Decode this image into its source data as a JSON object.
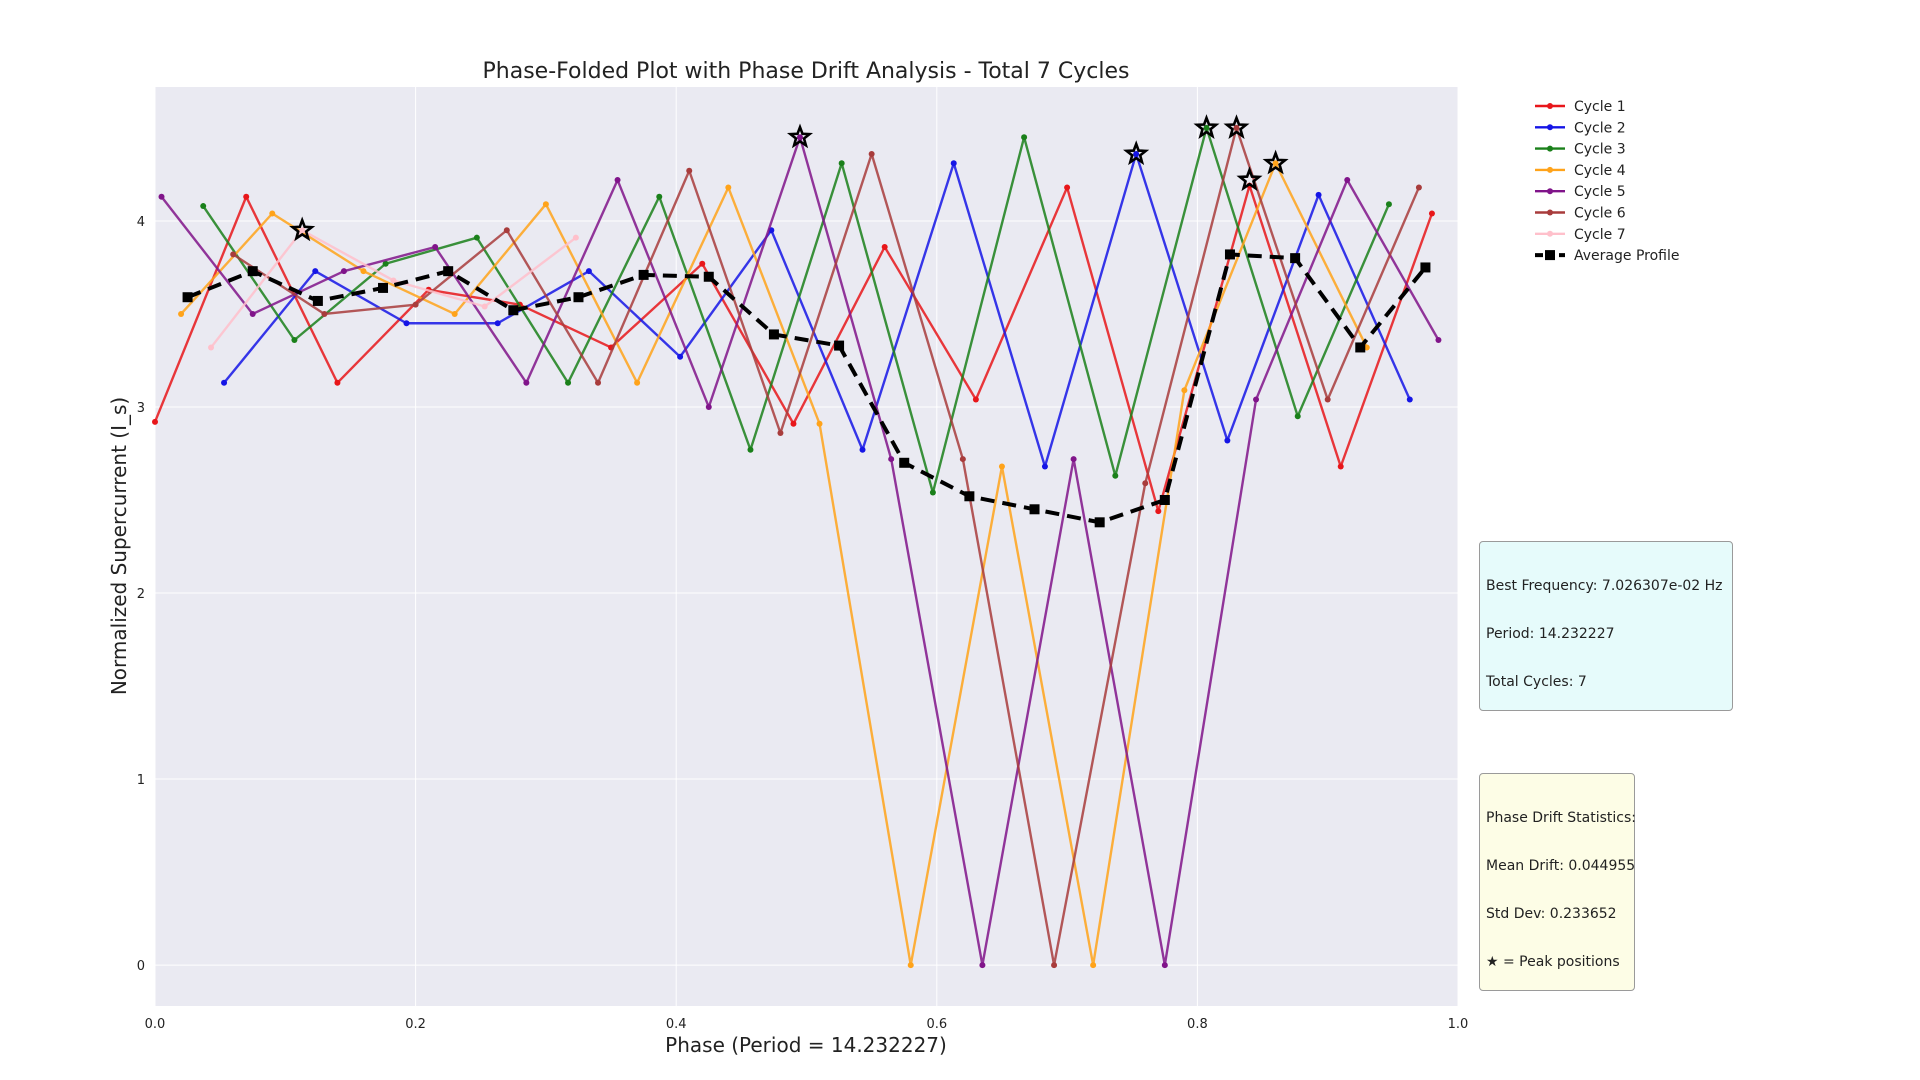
{
  "chart_data": {
    "type": "line",
    "title": "Phase-Folded Plot with Phase Drift Analysis - Total 7 Cycles",
    "xlabel": "Phase (Period = 14.232227)",
    "ylabel": "Normalized Supercurrent (I_s)",
    "xlim": [
      0.0,
      1.0
    ],
    "ylim": [
      -0.22,
      4.72
    ],
    "xticks": [
      "0.0",
      "0.2",
      "0.4",
      "0.6",
      "0.8",
      "1.0"
    ],
    "yticks": [
      "0",
      "1",
      "2",
      "3",
      "4"
    ],
    "grid": true,
    "legend_position": "upper-right-outside",
    "series": [
      {
        "name": "Cycle 1",
        "color": "#e8161a",
        "x": [
          0.0,
          0.07,
          0.14,
          0.21,
          0.28,
          0.35,
          0.42,
          0.49,
          0.56,
          0.63,
          0.7,
          0.77,
          0.84,
          0.91,
          0.98
        ],
        "y": [
          2.92,
          4.13,
          3.13,
          3.63,
          3.55,
          3.32,
          3.77,
          2.91,
          3.86,
          3.04,
          4.18,
          2.44,
          4.19,
          2.68,
          4.04
        ]
      },
      {
        "name": "Cycle 2",
        "color": "#1515e6",
        "x": [
          0.053,
          0.123,
          0.193,
          0.263,
          0.333,
          0.403,
          0.473,
          0.543,
          0.613,
          0.683,
          0.753,
          0.823,
          0.893,
          0.963
        ],
        "y": [
          3.13,
          3.73,
          3.45,
          3.45,
          3.73,
          3.27,
          3.95,
          2.77,
          4.31,
          2.68,
          4.36,
          2.82,
          4.14,
          3.04
        ]
      },
      {
        "name": "Cycle 3",
        "color": "#1a801a",
        "x": [
          0.037,
          0.107,
          0.177,
          0.247,
          0.317,
          0.387,
          0.457,
          0.527,
          0.597,
          0.667,
          0.737,
          0.807,
          0.877,
          0.947
        ],
        "y": [
          4.08,
          3.36,
          3.77,
          3.91,
          3.13,
          4.13,
          2.77,
          4.31,
          2.54,
          4.45,
          2.63,
          4.5,
          2.95,
          4.09
        ]
      },
      {
        "name": "Cycle 4",
        "color": "#ffa31a",
        "x": [
          0.02,
          0.09,
          0.16,
          0.23,
          0.3,
          0.37,
          0.44,
          0.51,
          0.58,
          0.65,
          0.72,
          0.79,
          0.86,
          0.93
        ],
        "y": [
          3.5,
          4.04,
          3.73,
          3.5,
          4.09,
          3.13,
          4.18,
          2.91,
          0.0,
          2.68,
          0.0,
          3.09,
          4.31,
          3.32
        ]
      },
      {
        "name": "Cycle 5",
        "color": "#80148a",
        "x": [
          0.005,
          0.075,
          0.145,
          0.215,
          0.285,
          0.355,
          0.425,
          0.495,
          0.565,
          0.635,
          0.705,
          0.775,
          0.845,
          0.915,
          0.985
        ],
        "y": [
          4.13,
          3.5,
          3.73,
          3.86,
          3.13,
          4.22,
          3.0,
          4.45,
          2.72,
          0.0,
          2.72,
          0.0,
          3.04,
          4.22,
          3.36
        ]
      },
      {
        "name": "Cycle 6",
        "color": "#a83c3c",
        "x": [
          0.06,
          0.13,
          0.2,
          0.27,
          0.34,
          0.41,
          0.48,
          0.55,
          0.62,
          0.69,
          0.76,
          0.83,
          0.9,
          0.97
        ],
        "y": [
          3.82,
          3.5,
          3.55,
          3.95,
          3.13,
          4.27,
          2.86,
          4.36,
          2.72,
          0.0,
          2.59,
          4.5,
          3.04,
          4.18
        ]
      },
      {
        "name": "Cycle 7",
        "color": "#ffc0cb",
        "x": [
          0.043,
          0.113,
          0.183,
          0.253,
          0.323
        ],
        "y": [
          3.32,
          3.95,
          3.68,
          3.54,
          3.91
        ]
      },
      {
        "name": "Average Profile",
        "color": "#000000",
        "dashed": true,
        "x": [
          0.025,
          0.075,
          0.125,
          0.175,
          0.225,
          0.275,
          0.325,
          0.375,
          0.425,
          0.475,
          0.525,
          0.575,
          0.625,
          0.675,
          0.725,
          0.775,
          0.825,
          0.875,
          0.925,
          0.975
        ],
        "y": [
          3.59,
          3.73,
          3.57,
          3.64,
          3.73,
          3.52,
          3.59,
          3.71,
          3.7,
          3.39,
          3.33,
          2.7,
          2.52,
          2.45,
          2.38,
          2.5,
          3.82,
          3.8,
          3.32,
          3.75
        ]
      }
    ],
    "peak_markers": {
      "x": [
        0.113,
        0.495,
        0.753,
        0.807,
        0.83,
        0.84,
        0.86
      ],
      "y": [
        3.95,
        4.45,
        4.36,
        4.5,
        4.5,
        4.22,
        4.31
      ]
    }
  },
  "info_boxes": {
    "frequency": {
      "lines": [
        "Best Frequency: 7.026307e-02 Hz",
        "Period: 14.232227",
        "Total Cycles: 7"
      ],
      "background": "#e6fbfb"
    },
    "drift": {
      "lines": [
        "Phase Drift Statistics:",
        "Mean Drift: 0.044955",
        "Std Dev: 0.233652",
        "★ = Peak positions"
      ],
      "background": "#fdfde6"
    }
  }
}
